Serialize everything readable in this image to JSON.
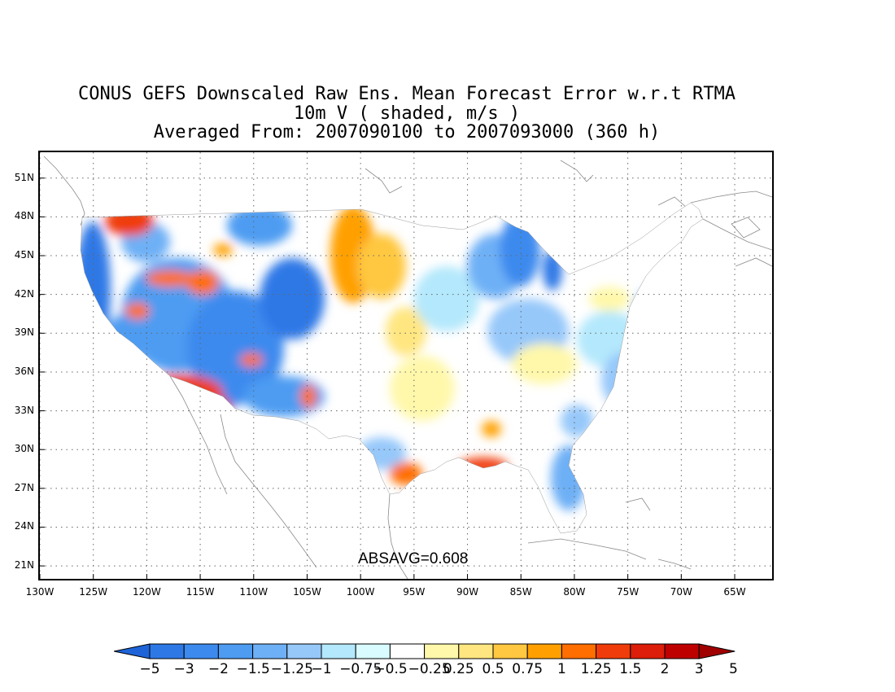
{
  "title": {
    "line1": "CONUS GEFS Downscaled Raw Ens. Mean Forecast Error w.r.t RTMA",
    "line2": "10m V ( shaded, m/s )",
    "line3": "Averaged From: 2007090100 to 2007093000 (360 h)"
  },
  "map": {
    "lon_range": [
      -130,
      -61.5
    ],
    "lat_range": [
      20,
      53
    ],
    "lat_ticks": [
      {
        "value": 21,
        "label": "21N"
      },
      {
        "value": 24,
        "label": "24N"
      },
      {
        "value": 27,
        "label": "27N"
      },
      {
        "value": 30,
        "label": "30N"
      },
      {
        "value": 33,
        "label": "33N"
      },
      {
        "value": 36,
        "label": "36N"
      },
      {
        "value": 39,
        "label": "39N"
      },
      {
        "value": 42,
        "label": "42N"
      },
      {
        "value": 45,
        "label": "45N"
      },
      {
        "value": 48,
        "label": "48N"
      },
      {
        "value": 51,
        "label": "51N"
      }
    ],
    "lon_ticks": [
      {
        "value": -130,
        "label": "130W"
      },
      {
        "value": -125,
        "label": "125W"
      },
      {
        "value": -120,
        "label": "120W"
      },
      {
        "value": -115,
        "label": "115W"
      },
      {
        "value": -110,
        "label": "110W"
      },
      {
        "value": -105,
        "label": "105W"
      },
      {
        "value": -100,
        "label": "100W"
      },
      {
        "value": -95,
        "label": "95W"
      },
      {
        "value": -90,
        "label": "90W"
      },
      {
        "value": -85,
        "label": "85W"
      },
      {
        "value": -80,
        "label": "80W"
      },
      {
        "value": -75,
        "label": "75W"
      },
      {
        "value": -70,
        "label": "70W"
      },
      {
        "value": -65,
        "label": "65W"
      }
    ],
    "grid": true,
    "absavg_label": "ABSAVG=0.608"
  },
  "colorbar": {
    "labels": [
      "-5",
      "-3",
      "-2",
      "-1.5",
      "-1.25",
      "-1",
      "-0.75",
      "-0.5",
      "-0.25",
      "0.25",
      "0.5",
      "0.75",
      "1",
      "1.25",
      "1.5",
      "2",
      "3",
      "5"
    ],
    "colors": [
      "#1e64d8",
      "#2e78e6",
      "#3c8aee",
      "#4e9cf2",
      "#6eb0f6",
      "#96c8fa",
      "#b4e8fc",
      "#d8fcff",
      "#ffffff",
      "#fff8aa",
      "#ffe680",
      "#ffc840",
      "#ffa000",
      "#ff6e00",
      "#f03c0a",
      "#dc1e0a",
      "#be0000",
      "#a00000"
    ]
  }
}
